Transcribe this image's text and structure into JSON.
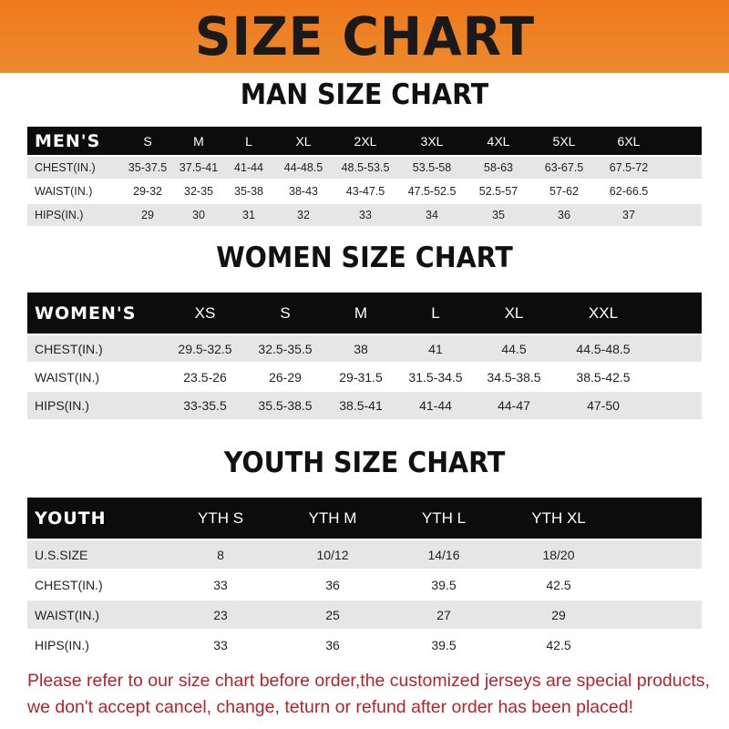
{
  "title": "SIZE CHART",
  "colors": {
    "banner": "#f0791c",
    "header_row": "#0c0c0c",
    "stripe": "#e6e6e6",
    "note": "#b3242a"
  },
  "men": {
    "title": "MAN SIZE CHART",
    "header": "MEN'S",
    "sizes": [
      "S",
      "M",
      "L",
      "XL",
      "2XL",
      "3XL",
      "4XL",
      "5XL",
      "6XL"
    ],
    "rows": [
      {
        "label": "CHEST(IN.)",
        "values": [
          "35-37.5",
          "37.5-41",
          "41-44",
          "44-48.5",
          "48.5-53.5",
          "53.5-58",
          "58-63",
          "63-67.5",
          "67.5-72"
        ]
      },
      {
        "label": "WAIST(IN.)",
        "values": [
          "29-32",
          "32-35",
          "35-38",
          "38-43",
          "43-47.5",
          "47.5-52.5",
          "52.5-57",
          "57-62",
          "62-66.5"
        ]
      },
      {
        "label": "HIPS(IN.)",
        "values": [
          "29",
          "30",
          "31",
          "32",
          "33",
          "34",
          "35",
          "36",
          "37"
        ]
      }
    ]
  },
  "women": {
    "title": "WOMEN SIZE CHART",
    "header": "WOMEN'S",
    "sizes": [
      "XS",
      "S",
      "M",
      "L",
      "XL",
      "XXL"
    ],
    "rows": [
      {
        "label": "CHEST(IN.)",
        "values": [
          "29.5-32.5",
          "32.5-35.5",
          "38",
          "41",
          "44.5",
          "44.5-48.5"
        ]
      },
      {
        "label": "WAIST(IN.)",
        "values": [
          "23.5-26",
          "26-29",
          "29-31.5",
          "31.5-34.5",
          "34.5-38.5",
          "38.5-42.5"
        ]
      },
      {
        "label": "HIPS(IN.)",
        "values": [
          "33-35.5",
          "35.5-38.5",
          "38.5-41",
          "41-44",
          "44-47",
          "47-50"
        ]
      }
    ]
  },
  "youth": {
    "title": "YOUTH SIZE CHART",
    "header": "YOUTH",
    "sizes": [
      "YTH S",
      "YTH M",
      "YTH L",
      "YTH XL"
    ],
    "rows": [
      {
        "label": "U.S.SIZE",
        "values": [
          "8",
          "10/12",
          "14/16",
          "18/20"
        ]
      },
      {
        "label": "CHEST(IN.)",
        "values": [
          "33",
          "36",
          "39.5",
          "42.5"
        ]
      },
      {
        "label": "WAIST(IN.)",
        "values": [
          "23",
          "25",
          "27",
          "29"
        ]
      },
      {
        "label": "HIPS(IN.)",
        "values": [
          "33",
          "36",
          "39.5",
          "42.5"
        ]
      }
    ]
  },
  "note": [
    "Please refer to our size chart before order,the customized jerseys are special products,",
    "we don't accept cancel, change, teturn or refund after order has been placed!"
  ]
}
